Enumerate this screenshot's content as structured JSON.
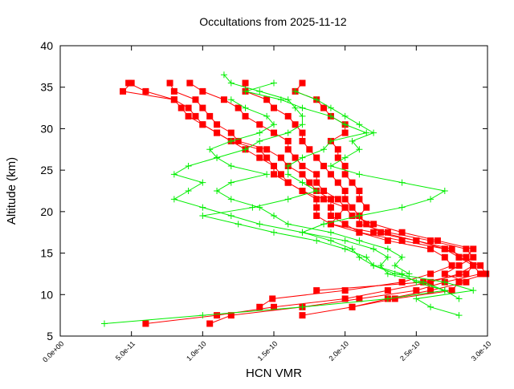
{
  "chart_data": {
    "type": "line",
    "title": "Occultations from 2025-11-12",
    "xlabel": "HCN VMR",
    "ylabel": "Altitude (km)",
    "xlim": [
      0,
      3e-10
    ],
    "ylim": [
      5,
      40
    ],
    "x_unit_scale": 1e-11,
    "xticks": [
      "0.0e+00",
      "5.0e-11",
      "1.0e-10",
      "1.5e-10",
      "2.0e-10",
      "2.5e-10",
      "3.0e-10"
    ],
    "xtick_values": [
      0,
      5e-11,
      1e-10,
      1.5e-10,
      2e-10,
      2.5e-10,
      3e-10
    ],
    "yticks": [
      "5",
      "10",
      "15",
      "20",
      "25",
      "30",
      "35",
      "40"
    ],
    "ytick_values": [
      5,
      10,
      15,
      20,
      25,
      30,
      35,
      40
    ],
    "grid": false,
    "colors": {
      "red": "#ff0000",
      "green": "#00ee00"
    },
    "series": [
      {
        "color": "#ff0000",
        "marker": "square",
        "alt": [
          6.5,
          7.5,
          8.5,
          9.5,
          10.5,
          11.5,
          12.5,
          13.5,
          14.5,
          15.5,
          16.5,
          17.5,
          18.5,
          19.5,
          20.5,
          21.5,
          22.5,
          23.5,
          24.5,
          25.5,
          26.5,
          27.5,
          28.5,
          29.5,
          30.5,
          31.5,
          32.5,
          33.5,
          34.5,
          35.5
        ],
        "vmr": [
          6.0,
          11,
          15,
          20,
          23,
          26,
          28,
          29,
          28,
          27,
          25,
          22,
          19,
          18,
          18,
          18,
          17,
          16,
          15,
          15,
          14,
          13,
          12,
          11,
          10,
          9.5,
          9,
          8,
          4.4,
          5
        ]
      },
      {
        "color": "#ff0000",
        "marker": "square",
        "alt": [
          6.5,
          7.5,
          8.5,
          9.5,
          10.5,
          11.5,
          12.5,
          13.5,
          14.5,
          15.5,
          16.5,
          17.5,
          18.5,
          19.5,
          20.5,
          21.5,
          22.5,
          23.5,
          24.5,
          25.5,
          26.5,
          27.5,
          28.5,
          29.5,
          30.5,
          31.5,
          32.5,
          33.5,
          34.5,
          35.5
        ],
        "vmr": [
          10.5,
          12,
          17,
          21,
          25,
          27,
          29.5,
          29,
          28.5,
          27,
          24,
          21,
          20,
          19,
          19,
          19,
          18,
          17.5,
          17,
          16,
          15.5,
          14.5,
          12.5,
          12,
          11,
          10.5,
          10,
          9.5,
          8,
          7.7
        ]
      },
      {
        "color": "#ff0000",
        "marker": "square",
        "alt": [
          8.5,
          9.5,
          10.5,
          11.5,
          12.5,
          13.5,
          14.5,
          15.5,
          16.5,
          17.5,
          18.5,
          19.5,
          20.5,
          21.5,
          22.5,
          23.5,
          24.5,
          25.5,
          26.5,
          27.5,
          28.5,
          29.5,
          30.5,
          31.5,
          32.5,
          33.5,
          34.5,
          35.5
        ],
        "vmr": [
          14,
          14.9,
          20,
          24,
          26,
          27.5,
          27,
          26,
          23,
          21,
          19,
          19.5,
          20,
          19.5,
          18.5,
          18,
          18,
          17,
          16.5,
          16,
          16,
          15,
          14,
          13,
          12.5,
          11.5,
          10,
          9.1
        ]
      },
      {
        "color": "#ff0000",
        "marker": "square",
        "alt": [
          8.5,
          9.5,
          10.5,
          11.5,
          12.5,
          13.5,
          14.5,
          15.5,
          16.5,
          17.5,
          18.5,
          19.5,
          20.5,
          21.5,
          22.5,
          23.5,
          24.5,
          25.5,
          26.5,
          27.5,
          28.5,
          29.5,
          30.5,
          31.5,
          32.5,
          33.5,
          34.5,
          35.5
        ],
        "vmr": [
          20.5,
          23,
          26,
          28.5,
          27,
          28,
          29,
          28.5,
          26,
          23,
          21,
          21,
          20.5,
          20,
          20,
          19.5,
          19,
          18.5,
          18,
          17.5,
          17,
          17,
          16.5,
          16,
          15,
          14.5,
          13,
          13
        ]
      },
      {
        "color": "#ff0000",
        "marker": "square",
        "alt": [
          7.5,
          8.5,
          9.5,
          10.5,
          11.5,
          12.5,
          13.5,
          14.5,
          15.5,
          16.5,
          17.5,
          18.5,
          19.5,
          20.5,
          21.5,
          22.5,
          23.5,
          24.5,
          25.5,
          26.5,
          27.5,
          28.5,
          29.5,
          30.5,
          31.5,
          32.5,
          33.5,
          34.5,
          35.5
        ],
        "vmr": [
          17,
          20.5,
          23.5,
          27.5,
          28,
          29.9,
          29.5,
          28,
          27.5,
          25,
          22.5,
          21.5,
          21,
          21.5,
          21,
          21,
          20.5,
          20,
          20,
          19.5,
          19.5,
          19,
          20,
          20,
          19,
          18.5,
          18,
          16.5,
          17
        ]
      },
      {
        "color": "#ff0000",
        "marker": "square",
        "alt": [
          10.5,
          11.5,
          12.5,
          13.5,
          14.5,
          15.5,
          16.5,
          17.5,
          18.5,
          19.5,
          20.5,
          21.5,
          22.5,
          23.5,
          24.5,
          25.5,
          26.5,
          27.5,
          28.5,
          29.5,
          30.5,
          31.5,
          32.5,
          33.5,
          34.5,
          35.5
        ],
        "vmr": [
          18,
          25.5,
          28.5,
          29,
          28.5,
          29,
          26.5,
          24,
          22,
          20.5,
          20,
          18.5,
          17,
          16,
          15.5,
          15,
          14.5,
          14,
          12,
          11,
          10,
          9,
          8.5,
          8,
          6,
          4.8
        ]
      },
      {
        "color": "#00ee00",
        "marker": "plus",
        "alt": [
          6.5,
          7.5,
          8.5,
          9.5,
          10.5,
          11.5,
          12.5,
          13.5,
          14.5,
          15.5,
          16.5,
          17.5,
          18.5,
          19.5,
          20.5,
          21.5,
          22.5,
          23.5,
          24.5,
          25.5,
          26.5,
          27.5,
          28.5,
          29.5,
          30.5,
          31.5,
          32.5,
          33.5,
          34.5,
          35.5,
          36.5
        ],
        "vmr": [
          3.1,
          10,
          17,
          23,
          27,
          25,
          24,
          22,
          21,
          20.5,
          19,
          17,
          14,
          12,
          10,
          8,
          9,
          10,
          8,
          9,
          11,
          13,
          14,
          16,
          17,
          17,
          16.5,
          16,
          14,
          12,
          11.5
        ]
      },
      {
        "color": "#00ee00",
        "marker": "plus",
        "alt": [
          7.5,
          8.5,
          9.5,
          10.5,
          11.5,
          12.5,
          13.5,
          14.5,
          15.5,
          16.5,
          17.5,
          18.5,
          19.5,
          20.5,
          21.5,
          22.5,
          23.5,
          24.5,
          25.5,
          26.5,
          27.5,
          28.5,
          29.5,
          30.5,
          31.5,
          32.5,
          33.5,
          34.5,
          35.5
        ],
        "vmr": [
          28,
          26,
          25,
          29,
          27,
          23.5,
          22,
          21.5,
          20,
          18,
          15,
          12.5,
          10,
          13.5,
          16,
          18,
          17,
          16,
          16,
          17,
          18.5,
          19,
          21.5,
          20,
          19,
          17,
          15.5,
          13,
          15
        ]
      },
      {
        "color": "#00ee00",
        "marker": "plus",
        "alt": [
          9.5,
          10.5,
          11.5,
          12.5,
          13.5,
          14.5,
          15.5,
          16.5,
          17.5,
          18.5,
          19.5,
          20.5,
          21.5,
          22.5,
          23.5,
          24.5,
          25.5,
          26.5,
          27.5,
          28.5,
          29.5,
          30.5,
          31.5,
          32.5,
          33.5,
          34.5
        ],
        "vmr": [
          28,
          27,
          25.5,
          23,
          22.5,
          23,
          22,
          20,
          17,
          18.5,
          21,
          24,
          26,
          27,
          24,
          21,
          19,
          20,
          21,
          20.5,
          22,
          21,
          20,
          19,
          18,
          16.5
        ]
      },
      {
        "color": "#00ee00",
        "marker": "plus",
        "alt": [
          12.5,
          13.5,
          14.5,
          15.5,
          16.5,
          17.5,
          18.5,
          19.5,
          20.5,
          21.5,
          22.5,
          23.5,
          24.5,
          25.5,
          26.5,
          27.5,
          28.5,
          29.5,
          30.5,
          31.5,
          32.5,
          33.5
        ],
        "vmr": [
          24.5,
          23.5,
          24,
          23,
          21,
          19,
          16,
          15,
          14,
          12,
          11,
          12,
          14.5,
          12,
          11,
          10.5,
          12,
          14,
          15,
          14.5,
          13,
          12
        ]
      }
    ]
  }
}
